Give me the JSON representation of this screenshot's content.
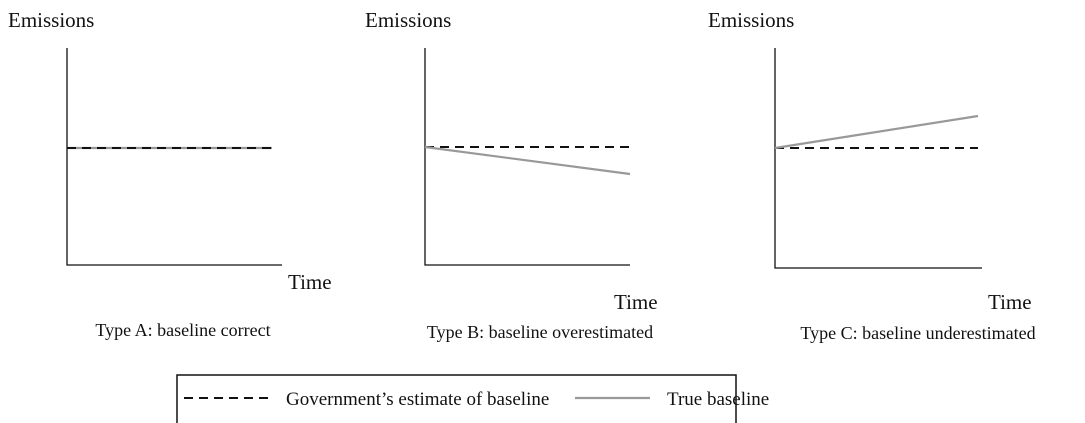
{
  "panels": [
    {
      "y_label": "Emissions",
      "x_label": "Time",
      "caption": "Type A: baseline correct"
    },
    {
      "y_label": "Emissions",
      "x_label": "Time",
      "caption": "Type B: baseline  overestimated"
    },
    {
      "y_label": "Emissions",
      "x_label": "Time",
      "caption": "Type C: baseline underestimated"
    }
  ],
  "legend": {
    "items": [
      {
        "label": "Government’s estimate of baseline"
      },
      {
        "label": "True baseline"
      }
    ]
  }
}
